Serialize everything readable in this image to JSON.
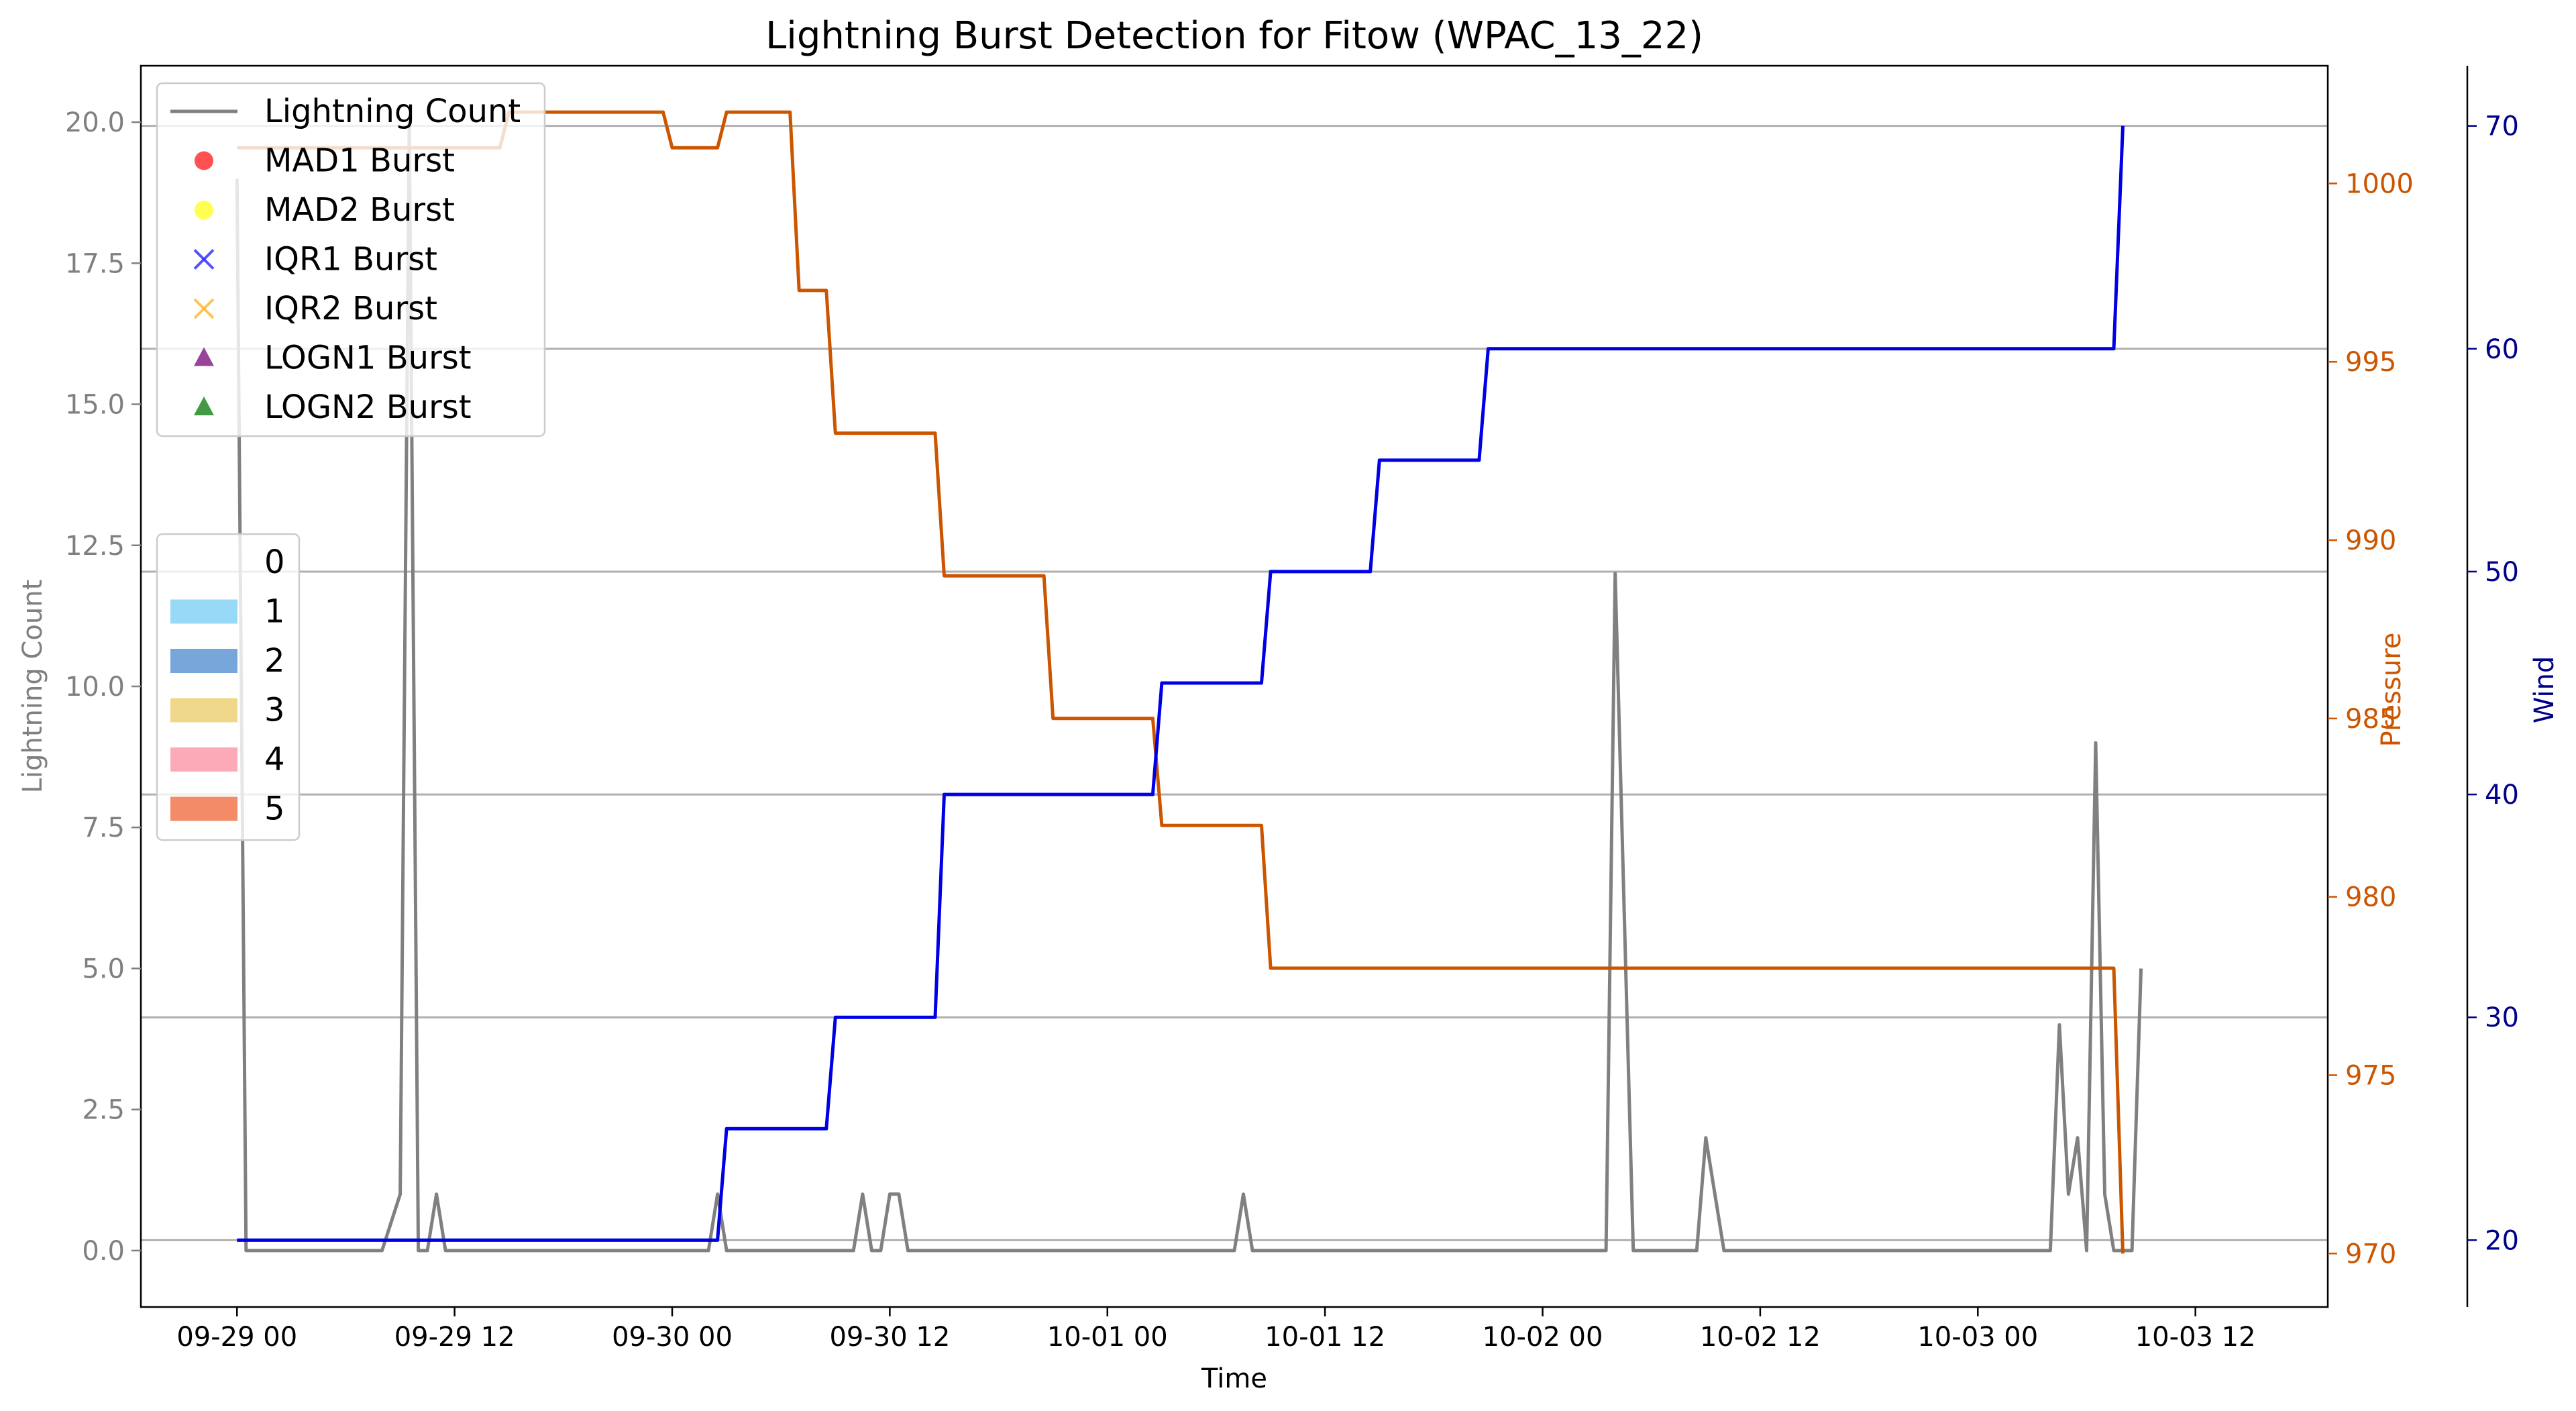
{
  "chart_data": {
    "type": "line",
    "title": "Lightning Burst Detection for Fitow (WPAC_13_22)",
    "xlabel": "Time",
    "ylabel_left": "Lightning Count",
    "ylabel_pressure": "Pressure",
    "ylabel_wind": "Wind",
    "x_ticks": [
      "09-29 00",
      "09-29 12",
      "09-30 00",
      "09-30 12",
      "10-01 00",
      "10-01 12",
      "10-02 00",
      "10-02 12",
      "10-03 00",
      "10-03 12"
    ],
    "xlim_hours": [
      -5.3,
      115.3
    ],
    "ylim_lightning": [
      -1.0,
      21.0
    ],
    "y_ticks_lightning": [
      "0.0",
      "2.5",
      "5.0",
      "7.5",
      "10.0",
      "12.5",
      "15.0",
      "17.5",
      "20.0"
    ],
    "ylim_pressure": [
      968.5,
      1003.3
    ],
    "y_ticks_pressure": [
      "970",
      "975",
      "980",
      "985",
      "990",
      "995",
      "1000"
    ],
    "ylim_wind": [
      17,
      72.7
    ],
    "y_ticks_wind": [
      "20",
      "30",
      "40",
      "50",
      "60",
      "70"
    ],
    "grid": "horizontal",
    "colors": {
      "lightning": "#808080",
      "pressure": "#cc5500",
      "wind": "#0000e6",
      "wind_axis": "#00008b",
      "grid": "#b0b0b0"
    },
    "series": [
      {
        "name": "Lightning Count",
        "x": [
          0,
          0.5,
          1,
          2,
          3,
          4,
          5,
          6,
          7,
          8,
          9,
          9.5,
          10,
          10.5,
          11,
          11.5,
          12,
          13,
          14,
          15,
          16,
          17,
          18,
          19,
          20,
          21,
          22,
          23,
          24,
          25,
          26,
          26.5,
          27,
          28,
          29,
          30,
          31,
          32,
          33,
          34,
          34.5,
          35,
          35.5,
          36,
          36.5,
          37,
          37.5,
          38,
          39,
          40,
          41,
          42,
          43,
          44,
          45,
          46,
          47,
          48,
          49,
          50,
          51,
          52,
          53,
          54,
          55,
          55.5,
          56,
          57,
          58,
          59,
          60,
          61,
          62,
          63,
          64,
          65,
          66,
          67,
          68,
          69,
          70,
          71,
          72,
          73,
          74,
          75,
          75.5,
          76,
          77,
          78,
          79,
          80,
          80.5,
          81,
          82,
          83,
          84,
          85,
          86,
          87,
          88,
          89,
          99.5,
          100,
          100.5,
          101,
          101.5,
          102,
          102.5,
          103,
          103.5,
          104,
          104.5,
          105
        ],
        "values": [
          19,
          0,
          0,
          0,
          0,
          0,
          0,
          0,
          0,
          0,
          1,
          20,
          0,
          0,
          1,
          0,
          0,
          0,
          0,
          0,
          0,
          0,
          0,
          0,
          0,
          0,
          0,
          0,
          0,
          0,
          0,
          1,
          0,
          0,
          0,
          0,
          0,
          0,
          0,
          0,
          1,
          0,
          0,
          1,
          1,
          0,
          0,
          0,
          0,
          0,
          0,
          0,
          0,
          0,
          0,
          0,
          0,
          0,
          0,
          0,
          0,
          0,
          0,
          0,
          0,
          1,
          0,
          0,
          0,
          0,
          0,
          0,
          0,
          0,
          0,
          0,
          0,
          0,
          0,
          0,
          0,
          0,
          0,
          0,
          0,
          0,
          0,
          12,
          0,
          0,
          0,
          0,
          0,
          2,
          0,
          0,
          0,
          0,
          0,
          0,
          0,
          0,
          0,
          0,
          4,
          1,
          2,
          0,
          9,
          1,
          0,
          0,
          0,
          5
        ]
      },
      {
        "name": "Pressure",
        "axis": "pressure",
        "x": [
          0,
          14.5,
          15,
          23.5,
          24,
          26.5,
          27,
          30.5,
          31,
          32.5,
          33,
          38.5,
          39,
          44.5,
          45,
          50.5,
          51,
          56.5,
          57,
          62.5,
          63,
          68.5,
          69,
          103.5,
          104
        ],
        "values": [
          1001,
          1001,
          1002,
          1002,
          1001,
          1001,
          1002,
          1002,
          997,
          997,
          993,
          993,
          989,
          989,
          985,
          985,
          982,
          982,
          978,
          978,
          978,
          978,
          978,
          978,
          970
        ]
      },
      {
        "name": "Wind",
        "axis": "wind",
        "x": [
          0,
          26.5,
          27,
          32.5,
          33,
          38.5,
          39,
          50.5,
          51,
          56.5,
          57,
          62.5,
          63,
          68.5,
          69,
          103.5,
          104
        ],
        "values": [
          20,
          20,
          25,
          25,
          30,
          30,
          40,
          40,
          45,
          45,
          50,
          50,
          55,
          55,
          60,
          60,
          70
        ]
      }
    ],
    "legend_main": {
      "placement": "top-left",
      "entries": [
        "Lightning Count",
        "MAD1 Burst",
        "MAD2 Burst",
        "IQR1 Burst",
        "IQR2 Burst",
        "LOGN1 Burst",
        "LOGN2 Burst"
      ],
      "colors": [
        "#808080",
        "#ff3333",
        "#ffff33",
        "#3333ff",
        "#ffb833",
        "#882288",
        "#228822"
      ]
    },
    "legend_category": {
      "placement": "center-left",
      "entries": [
        "0",
        "1",
        "2",
        "3",
        "4",
        "5"
      ],
      "colors": [
        "none",
        "#99d9f8",
        "#77a6da",
        "#efd88a",
        "#fca9b8",
        "#f38a68"
      ]
    }
  }
}
